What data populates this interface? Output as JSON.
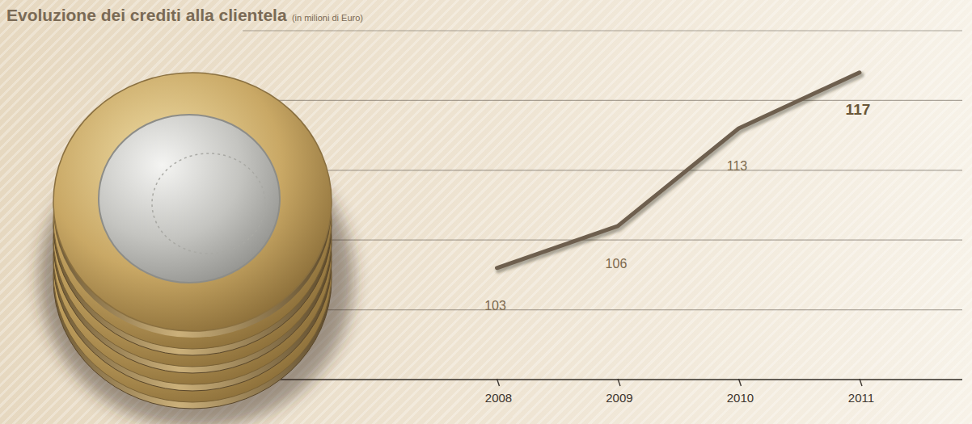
{
  "chart_data": {
    "type": "line",
    "title": "Evoluzione dei crediti alla clientela",
    "subtitle": "(in milioni di Euro)",
    "categories": [
      "2008",
      "2009",
      "2010",
      "2011"
    ],
    "values": [
      103,
      106,
      113,
      117
    ],
    "color": "#6e5f4e",
    "ylim": [
      95,
      120
    ],
    "yticks": [
      95,
      100,
      105,
      110,
      115,
      120
    ],
    "grid": true,
    "data_labels": true,
    "tick_labels": "x"
  }
}
